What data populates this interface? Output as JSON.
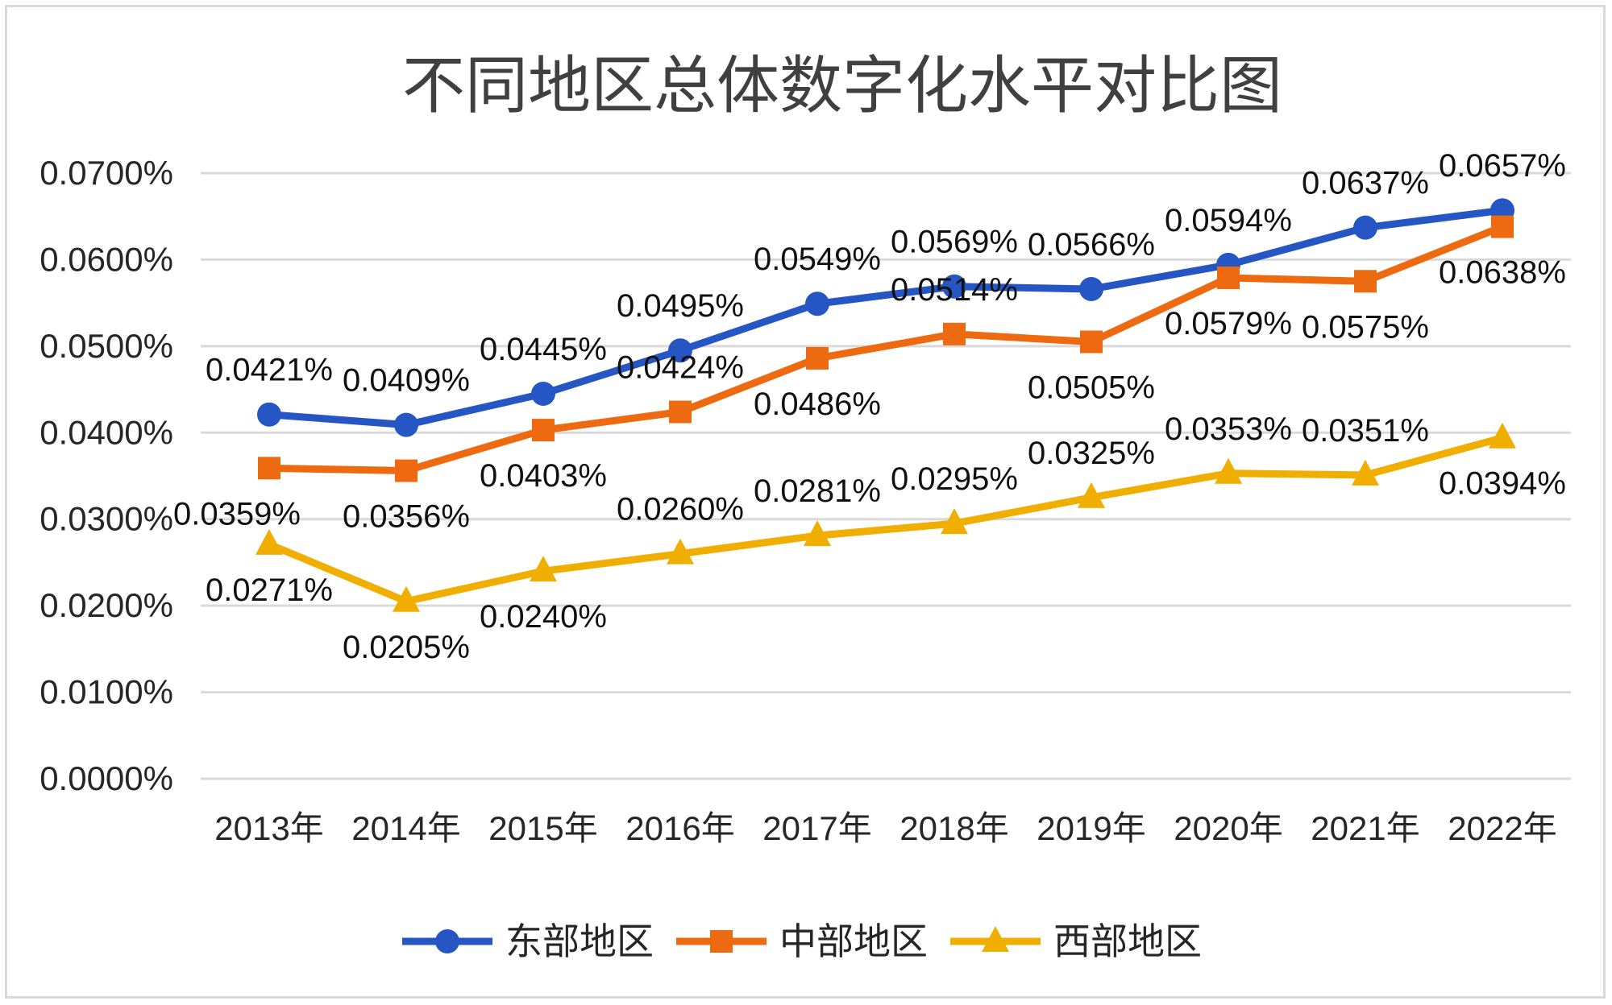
{
  "chart_data": {
    "type": "line",
    "title": "不同地区总体数字化水平对比图",
    "categories": [
      "2013年",
      "2014年",
      "2015年",
      "2016年",
      "2017年",
      "2018年",
      "2019年",
      "2020年",
      "2021年",
      "2022年"
    ],
    "y_ticks": [
      "0.0000%",
      "0.0100%",
      "0.0200%",
      "0.0300%",
      "0.0400%",
      "0.0500%",
      "0.0600%",
      "0.0700%"
    ],
    "ylim": [
      0,
      0.07
    ],
    "grid": true,
    "legend_position": "bottom",
    "series": [
      {
        "name": "东部地区",
        "color": "#2556c4",
        "marker": "circle",
        "values": [
          0.0421,
          0.0409,
          0.0445,
          0.0495,
          0.0549,
          0.0569,
          0.0566,
          0.0594,
          0.0637,
          0.0657
        ],
        "labels": [
          "0.0421%",
          "0.0409%",
          "0.0445%",
          "0.0495%",
          "0.0549%",
          "0.0569%",
          "0.0566%",
          "0.0594%",
          "0.0637%",
          "0.0657%"
        ]
      },
      {
        "name": "中部地区",
        "color": "#ed6a10",
        "marker": "square",
        "values": [
          0.0359,
          0.0356,
          0.0403,
          0.0424,
          0.0486,
          0.0514,
          0.0505,
          0.0579,
          0.0575,
          0.0638
        ],
        "labels": [
          "0.0359%",
          "0.0356%",
          "0.0403%",
          "0.0424%",
          "0.0486%",
          "0.0514%",
          "0.0505%",
          "0.0579%",
          "0.0575%",
          "0.0638%"
        ]
      },
      {
        "name": "西部地区",
        "color": "#f0ae00",
        "marker": "triangle",
        "values": [
          0.0271,
          0.0205,
          0.024,
          0.026,
          0.0281,
          0.0295,
          0.0325,
          0.0353,
          0.0351,
          0.0394
        ],
        "labels": [
          "0.0271%",
          "0.0205%",
          "0.0240%",
          "0.0260%",
          "0.0281%",
          "0.0295%",
          "0.0325%",
          "0.0353%",
          "0.0351%",
          "0.0394%"
        ]
      }
    ]
  }
}
